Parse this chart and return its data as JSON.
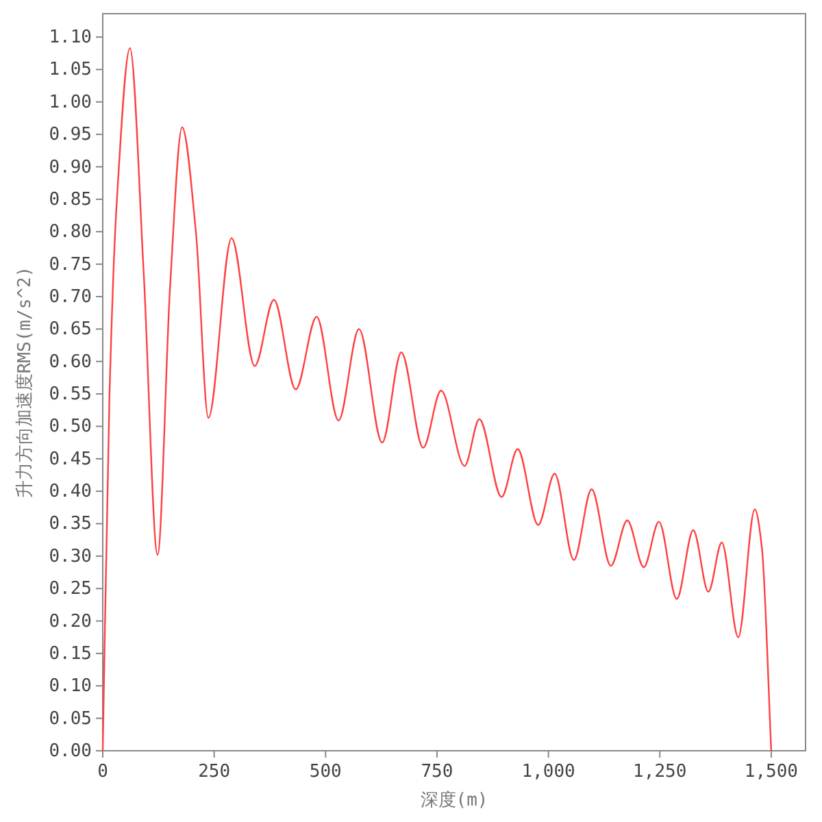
{
  "chart_data": {
    "type": "line",
    "xlabel": "深度(m)",
    "ylabel": "升力方向加速度RMS(m/s^2)",
    "xlim": [
      0,
      1577
    ],
    "ylim": [
      0,
      1.136
    ],
    "xticks": [
      0,
      250,
      500,
      750,
      {
        "value": 1000,
        "label": "1,000"
      },
      {
        "value": 1250,
        "label": "1,250"
      },
      {
        "value": 1500,
        "label": "1,500"
      }
    ],
    "yticks": [
      {
        "value": 0,
        "label": "0.00"
      },
      0.05,
      {
        "value": 0.1,
        "label": "0.10"
      },
      0.15,
      {
        "value": 0.2,
        "label": "0.20"
      },
      0.25,
      {
        "value": 0.3,
        "label": "0.30"
      },
      0.35,
      {
        "value": 0.4,
        "label": "0.40"
      },
      0.45,
      {
        "value": 0.5,
        "label": "0.50"
      },
      0.55,
      {
        "value": 0.6,
        "label": "0.60"
      },
      0.65,
      {
        "value": 0.7,
        "label": "0.70"
      },
      0.75,
      {
        "value": 0.8,
        "label": "0.80"
      },
      0.85,
      {
        "value": 0.9,
        "label": "0.90"
      },
      0.95,
      {
        "value": 1,
        "label": "1.00"
      },
      1.05,
      {
        "value": 1.1,
        "label": "1.10"
      }
    ],
    "marker": "none",
    "line_style": "solid",
    "series": [
      {
        "color": "#ff4040",
        "x": [
          0,
          15,
          31,
          61,
          92,
          123,
          151,
          178,
          209,
          237,
          289,
          341,
          384,
          433,
          480,
          529,
          575,
          627,
          670,
          719,
          759,
          812,
          845,
          895,
          931,
          977,
          1014,
          1057,
          1097,
          1140,
          1177,
          1214,
          1248,
          1288,
          1325,
          1359,
          1389,
          1426,
          1463,
          1479,
          1500
        ],
        "values": [
          0,
          0.545,
          0.84,
          1.083,
          0.735,
          0.302,
          0.714,
          0.961,
          0.8,
          0.513,
          0.79,
          0.593,
          0.695,
          0.557,
          0.669,
          0.509,
          0.65,
          0.475,
          0.614,
          0.467,
          0.555,
          0.439,
          0.511,
          0.391,
          0.465,
          0.348,
          0.427,
          0.294,
          0.403,
          0.285,
          0.355,
          0.283,
          0.353,
          0.234,
          0.34,
          0.245,
          0.321,
          0.175,
          0.372,
          0.313,
          0
        ]
      }
    ]
  }
}
